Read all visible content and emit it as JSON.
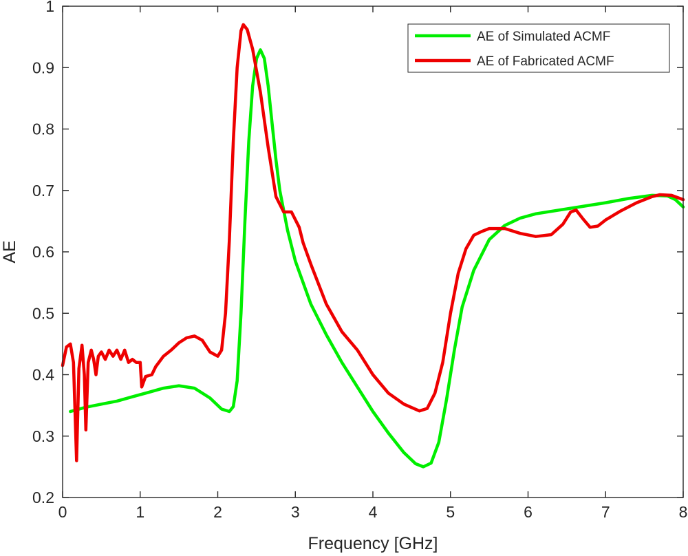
{
  "chart_data": {
    "type": "line",
    "xlabel": "Frequency [GHz]",
    "ylabel": "AE",
    "xlim": [
      0,
      8
    ],
    "ylim": [
      0.2,
      1
    ],
    "xticks": [
      "0",
      "1",
      "2",
      "3",
      "4",
      "5",
      "6",
      "7",
      "8"
    ],
    "yticks": [
      "0.2",
      "0.3",
      "0.4",
      "0.5",
      "0.6",
      "0.7",
      "0.8",
      "0.9",
      "1"
    ],
    "grid": false,
    "legend_position": "top-right",
    "series": [
      {
        "name": "AE of Simulated ACMF",
        "color": "#00ee00",
        "points": [
          [
            0.1,
            0.34
          ],
          [
            0.3,
            0.347
          ],
          [
            0.5,
            0.352
          ],
          [
            0.7,
            0.357
          ],
          [
            0.9,
            0.364
          ],
          [
            1.1,
            0.371
          ],
          [
            1.3,
            0.378
          ],
          [
            1.5,
            0.382
          ],
          [
            1.7,
            0.378
          ],
          [
            1.9,
            0.362
          ],
          [
            2.05,
            0.344
          ],
          [
            2.15,
            0.34
          ],
          [
            2.2,
            0.348
          ],
          [
            2.25,
            0.39
          ],
          [
            2.3,
            0.5
          ],
          [
            2.35,
            0.65
          ],
          [
            2.4,
            0.78
          ],
          [
            2.45,
            0.87
          ],
          [
            2.5,
            0.915
          ],
          [
            2.55,
            0.929
          ],
          [
            2.6,
            0.915
          ],
          [
            2.65,
            0.87
          ],
          [
            2.7,
            0.81
          ],
          [
            2.75,
            0.75
          ],
          [
            2.8,
            0.7
          ],
          [
            2.9,
            0.635
          ],
          [
            3.0,
            0.585
          ],
          [
            3.2,
            0.515
          ],
          [
            3.4,
            0.465
          ],
          [
            3.6,
            0.42
          ],
          [
            3.8,
            0.38
          ],
          [
            4.0,
            0.34
          ],
          [
            4.2,
            0.305
          ],
          [
            4.4,
            0.273
          ],
          [
            4.55,
            0.255
          ],
          [
            4.65,
            0.25
          ],
          [
            4.75,
            0.256
          ],
          [
            4.85,
            0.29
          ],
          [
            4.95,
            0.36
          ],
          [
            5.05,
            0.44
          ],
          [
            5.15,
            0.51
          ],
          [
            5.3,
            0.57
          ],
          [
            5.5,
            0.62
          ],
          [
            5.7,
            0.643
          ],
          [
            5.9,
            0.655
          ],
          [
            6.1,
            0.662
          ],
          [
            6.4,
            0.668
          ],
          [
            6.7,
            0.674
          ],
          [
            7.0,
            0.68
          ],
          [
            7.3,
            0.687
          ],
          [
            7.6,
            0.692
          ],
          [
            7.8,
            0.691
          ],
          [
            7.9,
            0.685
          ],
          [
            8.0,
            0.673
          ]
        ]
      },
      {
        "name": "AE of Fabricated ACMF",
        "color": "#ee0000",
        "points": [
          [
            0.0,
            0.415
          ],
          [
            0.05,
            0.445
          ],
          [
            0.1,
            0.45
          ],
          [
            0.14,
            0.42
          ],
          [
            0.18,
            0.26
          ],
          [
            0.21,
            0.41
          ],
          [
            0.25,
            0.448
          ],
          [
            0.28,
            0.4
          ],
          [
            0.3,
            0.31
          ],
          [
            0.33,
            0.42
          ],
          [
            0.37,
            0.44
          ],
          [
            0.4,
            0.425
          ],
          [
            0.43,
            0.4
          ],
          [
            0.46,
            0.43
          ],
          [
            0.5,
            0.437
          ],
          [
            0.55,
            0.425
          ],
          [
            0.6,
            0.44
          ],
          [
            0.65,
            0.43
          ],
          [
            0.7,
            0.44
          ],
          [
            0.75,
            0.425
          ],
          [
            0.8,
            0.44
          ],
          [
            0.85,
            0.42
          ],
          [
            0.9,
            0.425
          ],
          [
            0.95,
            0.42
          ],
          [
            1.0,
            0.42
          ],
          [
            1.02,
            0.38
          ],
          [
            1.07,
            0.397
          ],
          [
            1.15,
            0.4
          ],
          [
            1.2,
            0.413
          ],
          [
            1.3,
            0.43
          ],
          [
            1.4,
            0.44
          ],
          [
            1.5,
            0.452
          ],
          [
            1.6,
            0.46
          ],
          [
            1.7,
            0.463
          ],
          [
            1.8,
            0.456
          ],
          [
            1.9,
            0.437
          ],
          [
            2.0,
            0.43
          ],
          [
            2.05,
            0.44
          ],
          [
            2.1,
            0.5
          ],
          [
            2.15,
            0.62
          ],
          [
            2.2,
            0.78
          ],
          [
            2.25,
            0.9
          ],
          [
            2.3,
            0.96
          ],
          [
            2.33,
            0.97
          ],
          [
            2.38,
            0.962
          ],
          [
            2.45,
            0.93
          ],
          [
            2.55,
            0.86
          ],
          [
            2.65,
            0.77
          ],
          [
            2.75,
            0.69
          ],
          [
            2.85,
            0.665
          ],
          [
            2.95,
            0.665
          ],
          [
            3.05,
            0.64
          ],
          [
            3.1,
            0.615
          ],
          [
            3.2,
            0.58
          ],
          [
            3.4,
            0.515
          ],
          [
            3.6,
            0.47
          ],
          [
            3.8,
            0.44
          ],
          [
            4.0,
            0.4
          ],
          [
            4.2,
            0.37
          ],
          [
            4.4,
            0.352
          ],
          [
            4.6,
            0.341
          ],
          [
            4.7,
            0.345
          ],
          [
            4.8,
            0.37
          ],
          [
            4.9,
            0.42
          ],
          [
            5.0,
            0.5
          ],
          [
            5.1,
            0.565
          ],
          [
            5.2,
            0.605
          ],
          [
            5.3,
            0.627
          ],
          [
            5.4,
            0.633
          ],
          [
            5.5,
            0.638
          ],
          [
            5.7,
            0.638
          ],
          [
            5.9,
            0.63
          ],
          [
            6.1,
            0.625
          ],
          [
            6.3,
            0.628
          ],
          [
            6.45,
            0.645
          ],
          [
            6.55,
            0.665
          ],
          [
            6.62,
            0.668
          ],
          [
            6.7,
            0.655
          ],
          [
            6.8,
            0.64
          ],
          [
            6.9,
            0.642
          ],
          [
            7.0,
            0.652
          ],
          [
            7.2,
            0.667
          ],
          [
            7.4,
            0.68
          ],
          [
            7.6,
            0.69
          ],
          [
            7.7,
            0.693
          ],
          [
            7.85,
            0.692
          ],
          [
            8.0,
            0.685
          ]
        ]
      }
    ]
  }
}
